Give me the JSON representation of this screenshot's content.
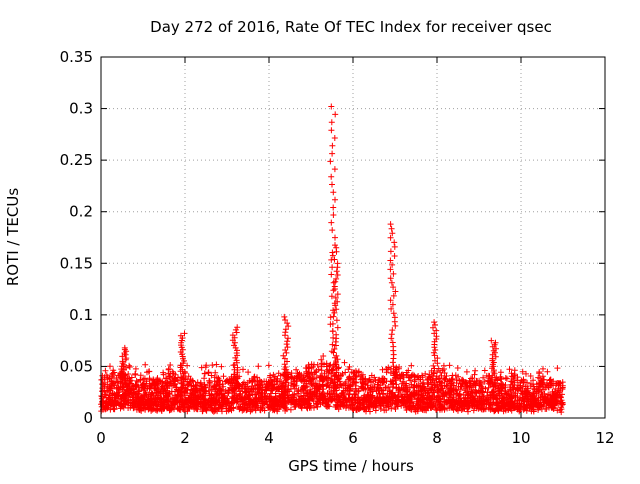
{
  "chart_data": {
    "type": "scatter",
    "title": "Day 272 of 2016, Rate Of TEC Index for receiver qsec",
    "xlabel": "GPS time / hours",
    "ylabel": "ROTI / TECUs",
    "xlim": [
      0,
      12
    ],
    "ylim": [
      0,
      0.35
    ],
    "x_ticks": [
      0,
      2,
      4,
      6,
      8,
      10,
      12
    ],
    "x_tick_labels": [
      "0",
      "2",
      "4",
      "6",
      "8",
      "10",
      "12"
    ],
    "y_ticks": [
      0,
      0.05,
      0.1,
      0.15,
      0.2,
      0.25,
      0.3,
      0.35
    ],
    "y_tick_labels": [
      "0",
      "0.05",
      "0.1",
      "0.15",
      "0.2",
      "0.25",
      "0.3",
      "0.35"
    ],
    "grid": true,
    "marker": "+",
    "color": "#ff0000",
    "x_data_range": [
      0,
      11
    ],
    "series": [
      {
        "name": "ROTI",
        "baseline_x": [
          0.0,
          0.5,
          1.0,
          1.5,
          2.0,
          2.5,
          3.0,
          3.5,
          4.0,
          4.5,
          5.0,
          5.5,
          6.0,
          6.5,
          7.0,
          7.5,
          8.0,
          8.5,
          9.0,
          9.5,
          10.0,
          10.5,
          11.0
        ],
        "baseline_y": [
          0.02,
          0.025,
          0.02,
          0.02,
          0.02,
          0.018,
          0.02,
          0.02,
          0.02,
          0.022,
          0.025,
          0.03,
          0.022,
          0.02,
          0.025,
          0.02,
          0.022,
          0.02,
          0.02,
          0.02,
          0.02,
          0.02,
          0.018
        ],
        "peaks": [
          {
            "x": 0.55,
            "y": 0.068
          },
          {
            "x": 1.95,
            "y": 0.082
          },
          {
            "x": 3.2,
            "y": 0.088
          },
          {
            "x": 4.4,
            "y": 0.098
          },
          {
            "x": 5.52,
            "y": 0.302
          },
          {
            "x": 5.58,
            "y": 0.165
          },
          {
            "x": 6.95,
            "y": 0.188
          },
          {
            "x": 7.95,
            "y": 0.093
          },
          {
            "x": 9.35,
            "y": 0.075
          }
        ],
        "seed": 272
      }
    ]
  }
}
